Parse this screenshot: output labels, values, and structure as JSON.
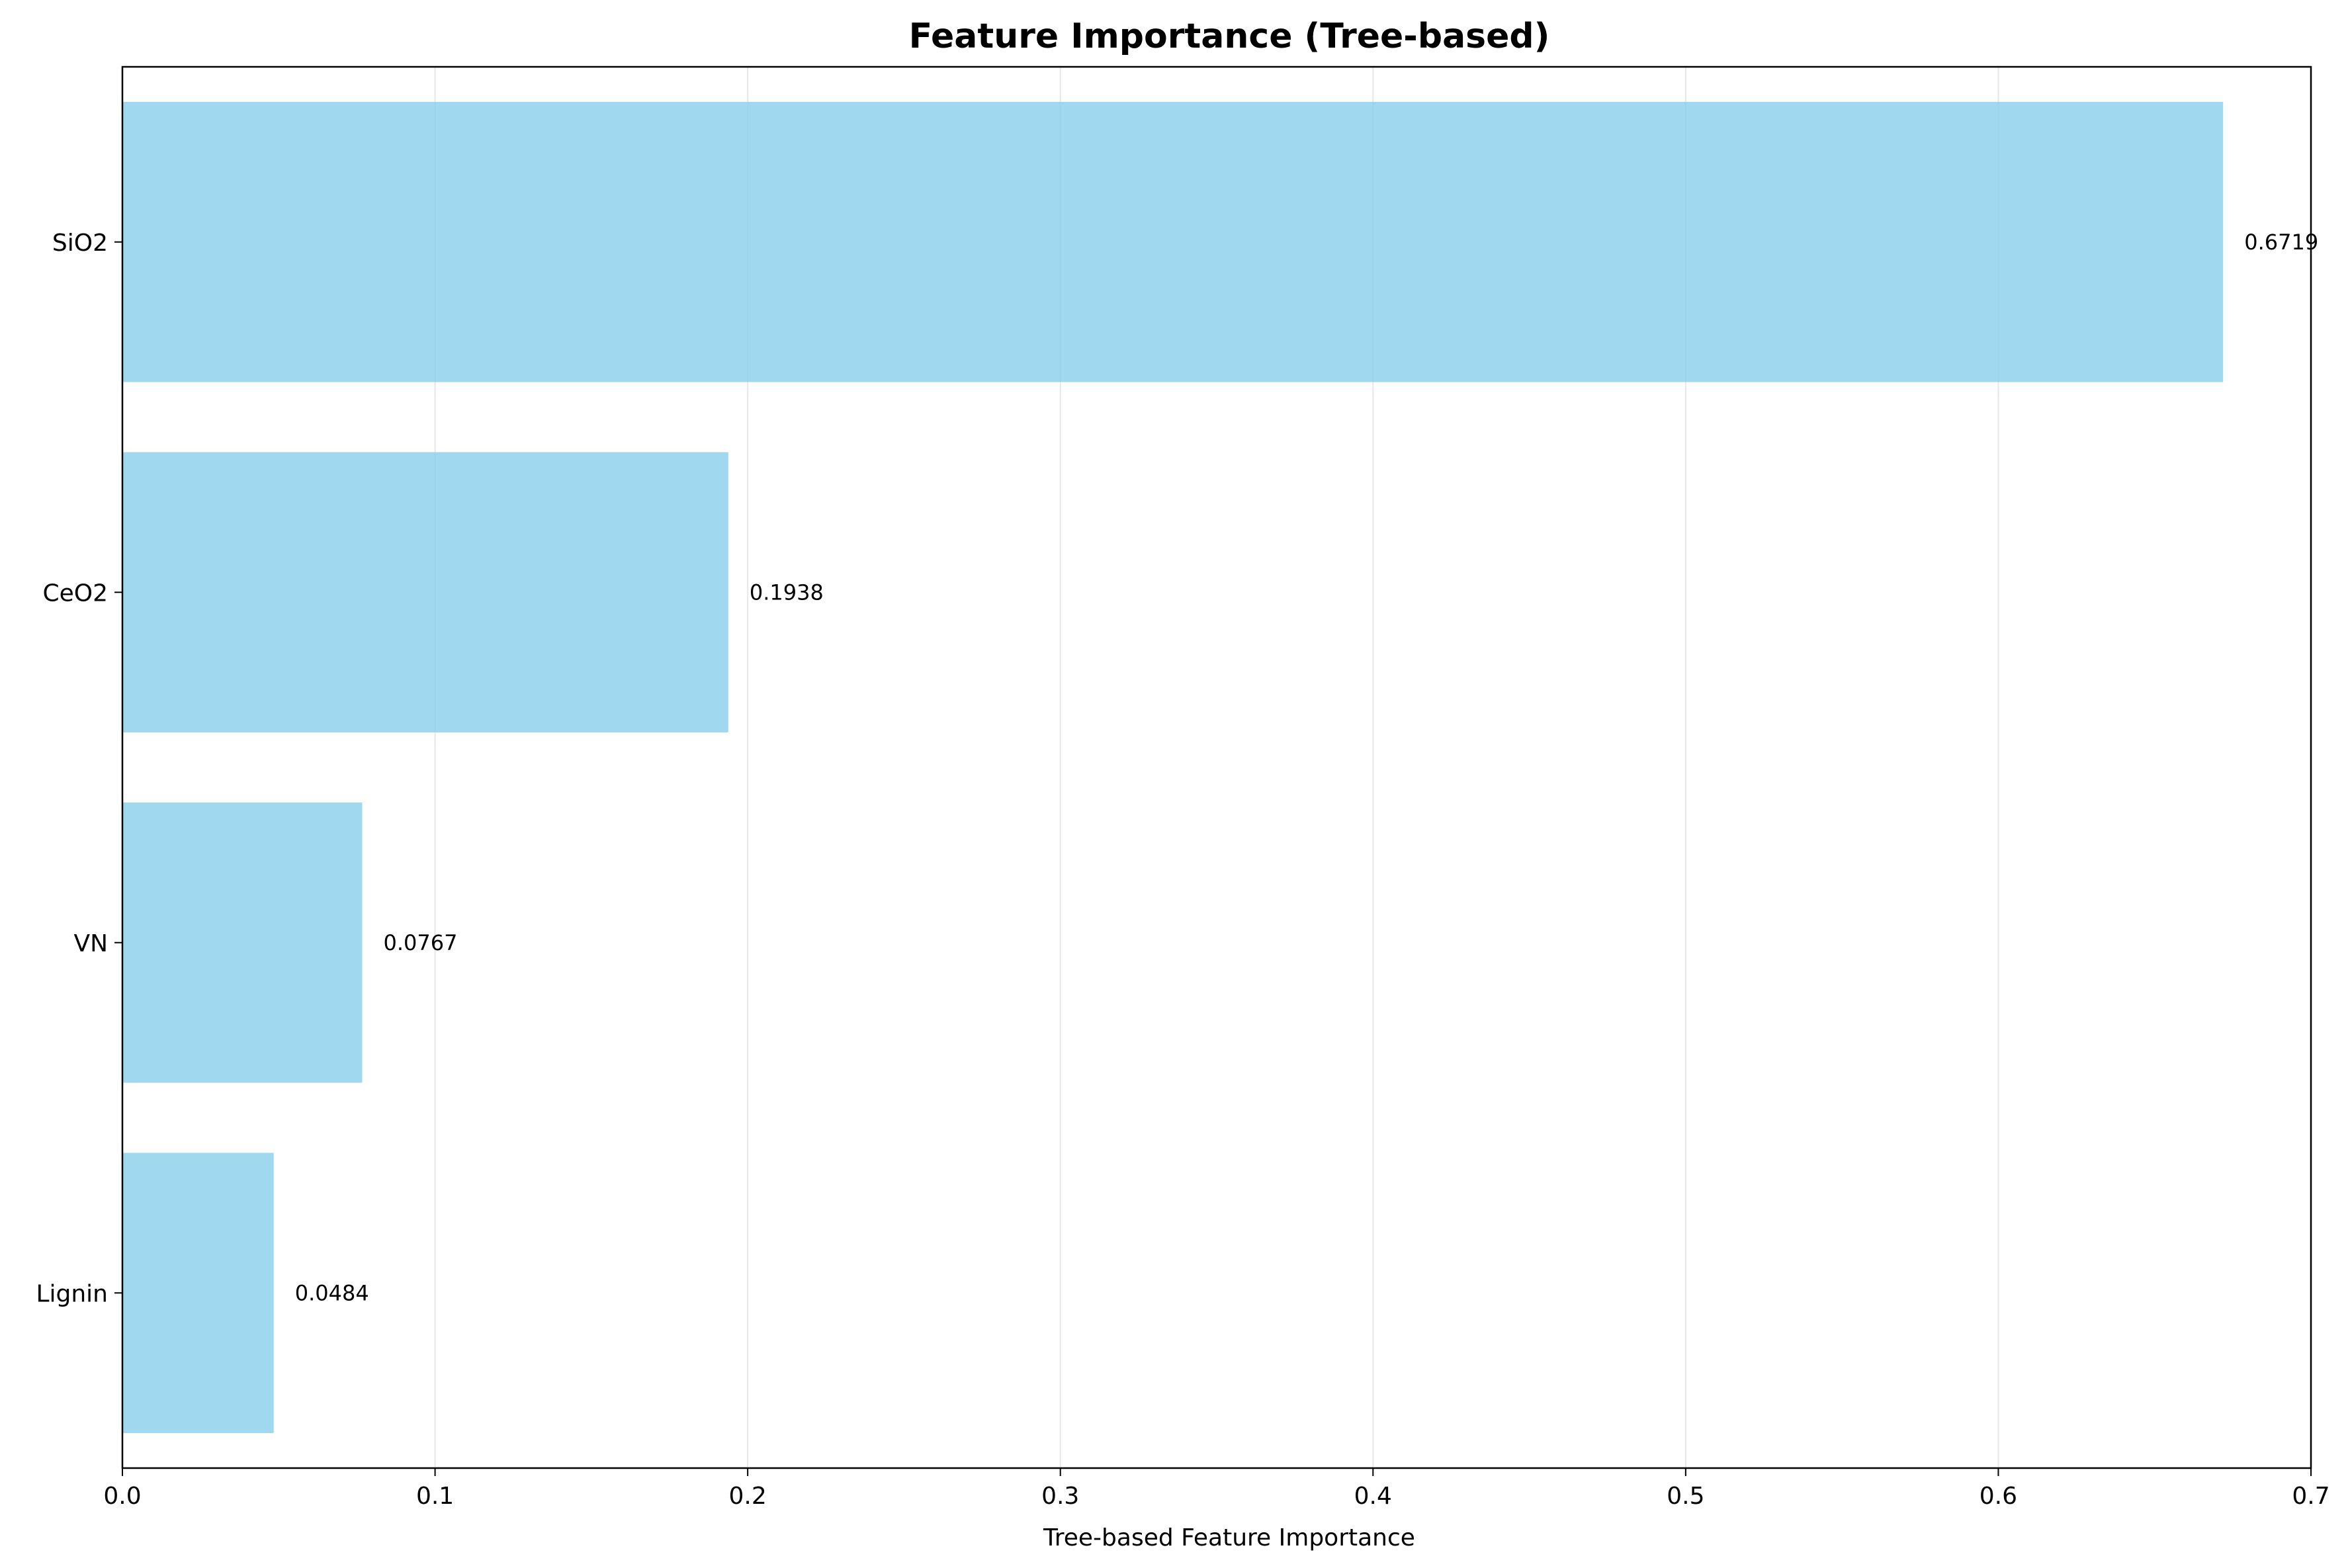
{
  "chart_data": {
    "type": "bar",
    "orientation": "horizontal",
    "title": "Feature Importance (Tree-based)",
    "xlabel": "Tree-based Feature Importance",
    "ylabel": "",
    "categories": [
      "SiO2",
      "CeO2",
      "VN",
      "Lignin"
    ],
    "values": [
      0.6719,
      0.1938,
      0.0767,
      0.0484
    ],
    "value_labels": [
      "0.6719",
      "0.1938",
      "0.0767",
      "0.0484"
    ],
    "xlim": [
      0,
      0.7
    ],
    "xticks": [
      0.0,
      0.1,
      0.2,
      0.3,
      0.4,
      0.5,
      0.6,
      0.7
    ],
    "xtick_labels": [
      "0.0",
      "0.1",
      "0.2",
      "0.3",
      "0.4",
      "0.5",
      "0.6",
      "0.7"
    ],
    "grid": "x-axis",
    "bar_color": "#87CEEB",
    "bar_opacity": 0.8
  }
}
